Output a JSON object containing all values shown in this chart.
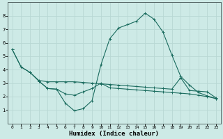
{
  "xlabel": "Humidex (Indice chaleur)",
  "bg_color": "#cdeae6",
  "line_color": "#1a6b5e",
  "grid_color": "#b8d8d4",
  "xlim": [
    -0.5,
    23.5
  ],
  "ylim": [
    0,
    9
  ],
  "xticks": [
    0,
    1,
    2,
    3,
    4,
    5,
    6,
    7,
    8,
    9,
    10,
    11,
    12,
    13,
    14,
    15,
    16,
    17,
    18,
    19,
    20,
    21,
    22,
    23
  ],
  "yticks": [
    1,
    2,
    3,
    4,
    5,
    6,
    7,
    8
  ],
  "line1_x": [
    0,
    1,
    2,
    3,
    4,
    5,
    6,
    7,
    8,
    9,
    10,
    11,
    12,
    13,
    14,
    15,
    16,
    17,
    18,
    19,
    20,
    21,
    22,
    23
  ],
  "line1_y": [
    5.5,
    4.2,
    3.8,
    3.2,
    3.1,
    3.1,
    3.1,
    3.1,
    3.05,
    3.0,
    2.95,
    2.9,
    2.85,
    2.8,
    2.75,
    2.7,
    2.65,
    2.6,
    2.55,
    3.4,
    2.45,
    2.4,
    2.35,
    1.9
  ],
  "line2_x": [
    3,
    4,
    5,
    6,
    7,
    8,
    9,
    10,
    11,
    12,
    13,
    14,
    15,
    16,
    17,
    18,
    19,
    20,
    21,
    22,
    23
  ],
  "line2_y": [
    3.15,
    2.6,
    2.55,
    2.2,
    2.1,
    2.35,
    2.6,
    3.0,
    2.65,
    2.6,
    2.55,
    2.5,
    2.45,
    2.4,
    2.35,
    2.3,
    2.25,
    2.2,
    2.1,
    2.0,
    1.85
  ],
  "line3_x": [
    0,
    1,
    2,
    3,
    4,
    5,
    6,
    7,
    8,
    9,
    10,
    11,
    12,
    13,
    14,
    15,
    16,
    17,
    18,
    19,
    20,
    21,
    22,
    23
  ],
  "line3_y": [
    5.5,
    4.2,
    3.8,
    3.15,
    2.6,
    2.55,
    1.5,
    0.95,
    1.1,
    1.7,
    4.35,
    6.3,
    7.1,
    7.35,
    7.6,
    8.2,
    7.75,
    6.8,
    5.1,
    3.5,
    2.85,
    2.3,
    2.05,
    1.85
  ]
}
